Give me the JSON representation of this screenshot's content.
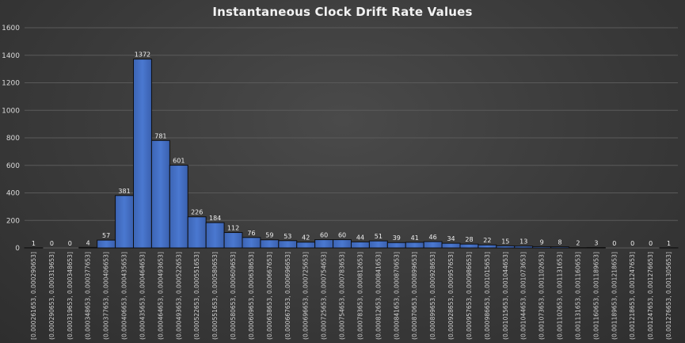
{
  "chart_data": {
    "type": "bar",
    "title": "Instantaneous Clock Drift Rate Values",
    "xlabel": "",
    "ylabel": "",
    "ylim": [
      0,
      1600
    ],
    "yticks": [
      0,
      200,
      400,
      600,
      800,
      1000,
      1200,
      1400,
      1600
    ],
    "grid": true,
    "legend": "none",
    "bar_color": "#4472C4",
    "categories": [
      "[0.000261653, 0.000290653]",
      "(0.000290653, 0.000319653]",
      "(0.000319653, 0.000348653]",
      "(0.000348653, 0.000377653]",
      "(0.000377653, 0.000406653]",
      "(0.000406653, 0.000435653]",
      "(0.000435653, 0.000464653]",
      "(0.000464653, 0.000493653]",
      "(0.000493653, 0.000522653]",
      "(0.000522653, 0.000551653]",
      "(0.000551653, 0.000580653]",
      "(0.000580653, 0.000609653]",
      "(0.000609653, 0.000638653]",
      "(0.000638653, 0.000667653]",
      "(0.000667653, 0.000696653]",
      "(0.000696653, 0.000725653]",
      "(0.000725653, 0.000754653]",
      "(0.000754653, 0.000783653]",
      "(0.000783653, 0.000812653]",
      "(0.000812653, 0.000841653]",
      "(0.000841653, 0.000870653]",
      "(0.000870653, 0.000899653]",
      "(0.000899653, 0.000928653]",
      "(0.000928653, 0.000957653]",
      "(0.000957653, 0.000986653]",
      "(0.000986653, 0.001015653]",
      "(0.001015653, 0.001044653]",
      "(0.001044653, 0.001073653]",
      "(0.001073653, 0.001102653]",
      "(0.001102653, 0.001131653]",
      "(0.001131653, 0.001160653]",
      "(0.001160653, 0.001189653]",
      "(0.001189653, 0.001218653]",
      "(0.001218653, 0.001247653]",
      "(0.001247653, 0.001276653]",
      "(0.001276653, 0.001305653]"
    ],
    "values": [
      1,
      0,
      0,
      4,
      57,
      381,
      1372,
      781,
      601,
      226,
      184,
      112,
      76,
      59,
      53,
      42,
      60,
      60,
      44,
      51,
      39,
      41,
      46,
      34,
      28,
      22,
      15,
      13,
      9,
      8,
      2,
      3,
      0,
      0,
      0,
      1
    ]
  }
}
